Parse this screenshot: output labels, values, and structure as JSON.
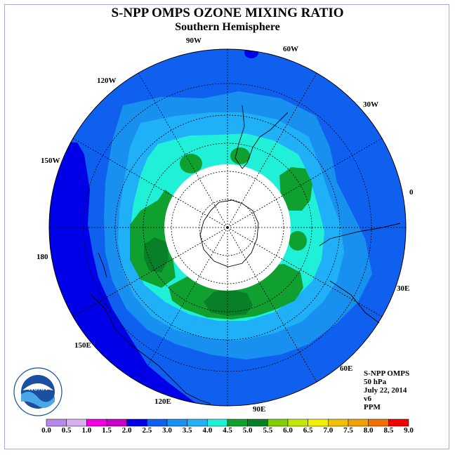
{
  "title": "S-NPP OMPS OZONE MIXING RATIO",
  "subtitle": "Southern Hemisphere",
  "logo": {
    "text": "NOAA",
    "ring_text": "NATIONAL OCEANIC AND ATMOSPHERIC ADMINISTRATION · U.S. DEPARTMENT OF COMMERCE"
  },
  "longitude_labels": {
    "lon_90w": "90W",
    "lon_60w": "60W",
    "lon_30w": "30W",
    "lon_0": "0",
    "lon_30e": "30E",
    "lon_60e": "60E",
    "lon_90e": "90E",
    "lon_120e": "120E",
    "lon_150e": "150E",
    "lon_180": "180",
    "lon_150w": "150W",
    "lon_120w": "120W"
  },
  "info": {
    "product": "S-NPP OMPS",
    "level": "50 hPa",
    "date": "July 22, 2014",
    "version": "v6",
    "units": "PPM"
  },
  "colorbar": {
    "labels": [
      "0.0",
      "0.5",
      "1.0",
      "1.5",
      "2.0",
      "2.5",
      "3.0",
      "3.5",
      "4.0",
      "4.5",
      "5.0",
      "5.5",
      "6.0",
      "6.5",
      "7.0",
      "7.5",
      "8.0",
      "8.5",
      "9.0"
    ],
    "colors": [
      "#b888e8",
      "#d8b0f0",
      "#f000e0",
      "#c800c8",
      "#0000e8",
      "#1060f0",
      "#1890f0",
      "#20b0f8",
      "#20f0d8",
      "#10a030",
      "#088028",
      "#80d000",
      "#c0e800",
      "#f0f000",
      "#f0c000",
      "#f0a000",
      "#f07000",
      "#f00000",
      "#806040"
    ]
  },
  "colors": {
    "band_2_0": "#0000e8",
    "band_2_5": "#1060f0",
    "band_3_0": "#1890f0",
    "band_3_5": "#20b0f8",
    "band_4_0": "#20f0d8",
    "band_4_5": "#10a030",
    "band_5_0": "#088028",
    "no_data": "#ffffff"
  }
}
